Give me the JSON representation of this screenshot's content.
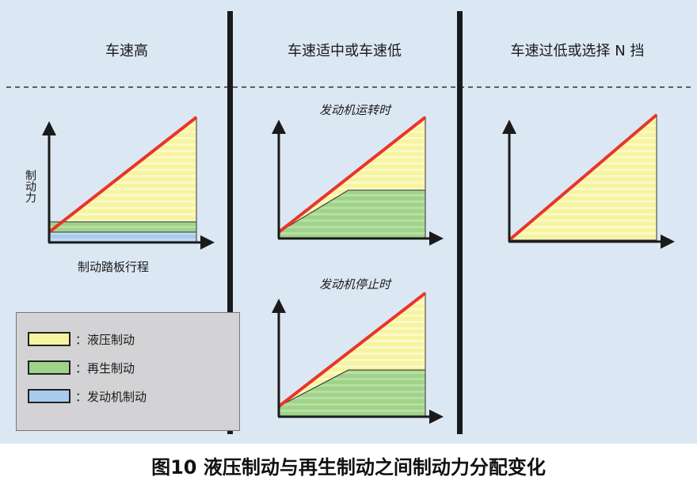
{
  "columns": [
    {
      "title": "车速高"
    },
    {
      "title": "车速适中或车速低"
    },
    {
      "title": "车速过低或选择 N 挡"
    }
  ],
  "subtitles": {
    "engine_running": "发动机运转时",
    "engine_stopped": "发动机停止时"
  },
  "axes": {
    "y_label": "制动力",
    "x_label": "制动踏板行程"
  },
  "legend": [
    {
      "label": "：液压制动",
      "color": "#f7f4a0"
    },
    {
      "label": "：再生制动",
      "color": "#9fd38a"
    },
    {
      "label": "：发动机制动",
      "color": "#a9cbec"
    }
  ],
  "colors": {
    "panel_bg": "#dce7f4",
    "line": "#e8352a",
    "divider": "#1a1a1a"
  },
  "caption": "图10 液压制动与再生制动之间制动力分配变化"
}
